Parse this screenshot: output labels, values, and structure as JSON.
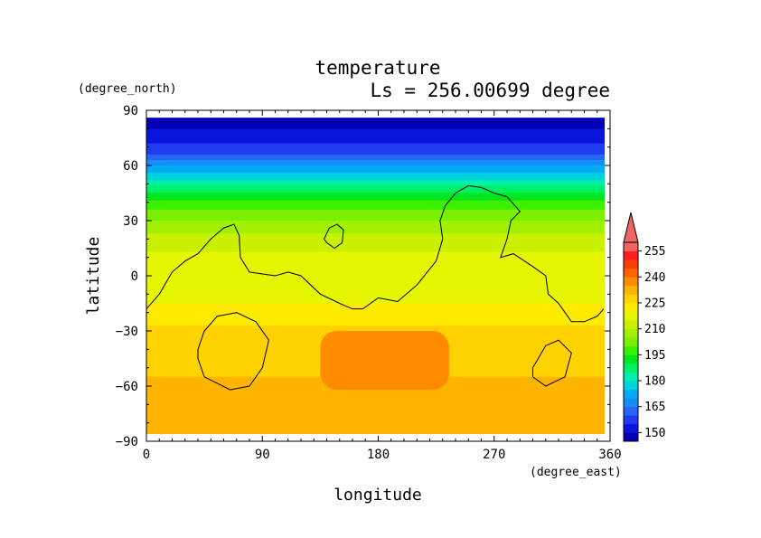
{
  "chart_data": {
    "type": "heatmap",
    "title": "temperature",
    "subtitle": "Ls = 256.00699 degree",
    "xlabel": "longitude",
    "ylabel": "latitude",
    "x_units": "(degree_east)",
    "y_units": "(degree_north)",
    "xlim": [
      0,
      360
    ],
    "ylim": [
      -90,
      90
    ],
    "x_ticks": [
      0,
      90,
      180,
      270,
      360
    ],
    "y_ticks": [
      90,
      60,
      30,
      0,
      -30,
      -60,
      -90
    ],
    "x_tick_labels": [
      "0",
      "90",
      "180",
      "270",
      "360"
    ],
    "y_tick_labels": [
      "90",
      "60",
      "30",
      "0",
      "−30",
      "−60",
      "−90"
    ],
    "colorbar": {
      "levels": [
        145,
        150,
        155,
        160,
        165,
        170,
        175,
        180,
        185,
        190,
        195,
        200,
        205,
        210,
        215,
        220,
        225,
        230,
        235,
        240,
        245,
        250,
        255,
        260
      ],
      "colors": [
        "#0000b4",
        "#0a14dc",
        "#1e3cf0",
        "#2864f5",
        "#148cfa",
        "#00aaf5",
        "#00d2dc",
        "#00f0aa",
        "#00f064",
        "#00e61e",
        "#3cf000",
        "#78f000",
        "#a0f000",
        "#c8f000",
        "#e6f500",
        "#ffeb00",
        "#ffd200",
        "#ffb400",
        "#ff8c00",
        "#ff6400",
        "#ff3c00",
        "#ff1e1e",
        "#f06464"
      ],
      "tick_values": [
        150,
        165,
        180,
        195,
        210,
        225,
        240,
        255
      ],
      "tick_labels": [
        "150",
        "165",
        "180",
        "195",
        "210",
        "225",
        "240",
        "255"
      ],
      "extend": "max"
    },
    "lat_profile": [
      {
        "lat": 85,
        "value": 148
      },
      {
        "lat": 75,
        "value": 152
      },
      {
        "lat": 66,
        "value": 160
      },
      {
        "lat": 60,
        "value": 170
      },
      {
        "lat": 52,
        "value": 180
      },
      {
        "lat": 45,
        "value": 190
      },
      {
        "lat": 38,
        "value": 198
      },
      {
        "lat": 30,
        "value": 205
      },
      {
        "lat": 20,
        "value": 212
      },
      {
        "lat": 10,
        "value": 216
      },
      {
        "lat": 0,
        "value": 218
      },
      {
        "lat": -15,
        "value": 220
      },
      {
        "lat": -25,
        "value": 224
      },
      {
        "lat": -35,
        "value": 228
      },
      {
        "lat": -55,
        "value": 230
      },
      {
        "lat": -70,
        "value": 231
      },
      {
        "lat": -85,
        "value": 231
      }
    ],
    "warm_region": {
      "lon": [
        135,
        235
      ],
      "lat": [
        -62,
        -30
      ],
      "value": 236
    },
    "contours": [
      [
        [
          0,
          -18
        ],
        [
          10,
          -10
        ],
        [
          20,
          2
        ],
        [
          30,
          8
        ],
        [
          40,
          12
        ],
        [
          50,
          20
        ],
        [
          60,
          26
        ],
        [
          68,
          28
        ],
        [
          72,
          22
        ],
        [
          73,
          10
        ],
        [
          80,
          2
        ],
        [
          100,
          0
        ],
        [
          110,
          2
        ],
        [
          120,
          0
        ],
        [
          135,
          -10
        ],
        [
          150,
          -15
        ],
        [
          160,
          -18
        ],
        [
          168,
          -18
        ],
        [
          180,
          -12
        ],
        [
          195,
          -14
        ],
        [
          210,
          -5
        ],
        [
          225,
          8
        ],
        [
          230,
          20
        ],
        [
          228,
          30
        ],
        [
          232,
          38
        ],
        [
          240,
          45
        ],
        [
          250,
          49
        ],
        [
          260,
          48
        ],
        [
          270,
          45
        ],
        [
          280,
          43
        ],
        [
          290,
          35
        ],
        [
          283,
          30
        ],
        [
          280,
          20
        ],
        [
          275,
          10
        ],
        [
          285,
          12
        ],
        [
          300,
          5
        ],
        [
          310,
          0
        ],
        [
          312,
          -10
        ],
        [
          320,
          -15
        ],
        [
          330,
          -25
        ],
        [
          340,
          -25
        ],
        [
          350,
          -22
        ],
        [
          355,
          -18
        ]
      ],
      [
        [
          138,
          20
        ],
        [
          142,
          26
        ],
        [
          148,
          28
        ],
        [
          153,
          25
        ],
        [
          152,
          18
        ],
        [
          146,
          15
        ],
        [
          140,
          18
        ],
        [
          138,
          20
        ]
      ],
      [
        [
          40,
          -40
        ],
        [
          45,
          -30
        ],
        [
          55,
          -22
        ],
        [
          70,
          -20
        ],
        [
          85,
          -25
        ],
        [
          95,
          -35
        ],
        [
          90,
          -50
        ],
        [
          80,
          -60
        ],
        [
          65,
          -62
        ],
        [
          45,
          -55
        ],
        [
          40,
          -45
        ],
        [
          40,
          -40
        ]
      ],
      [
        [
          300,
          -50
        ],
        [
          310,
          -38
        ],
        [
          320,
          -35
        ],
        [
          330,
          -42
        ],
        [
          325,
          -55
        ],
        [
          310,
          -60
        ],
        [
          300,
          -55
        ],
        [
          300,
          -50
        ]
      ]
    ]
  }
}
